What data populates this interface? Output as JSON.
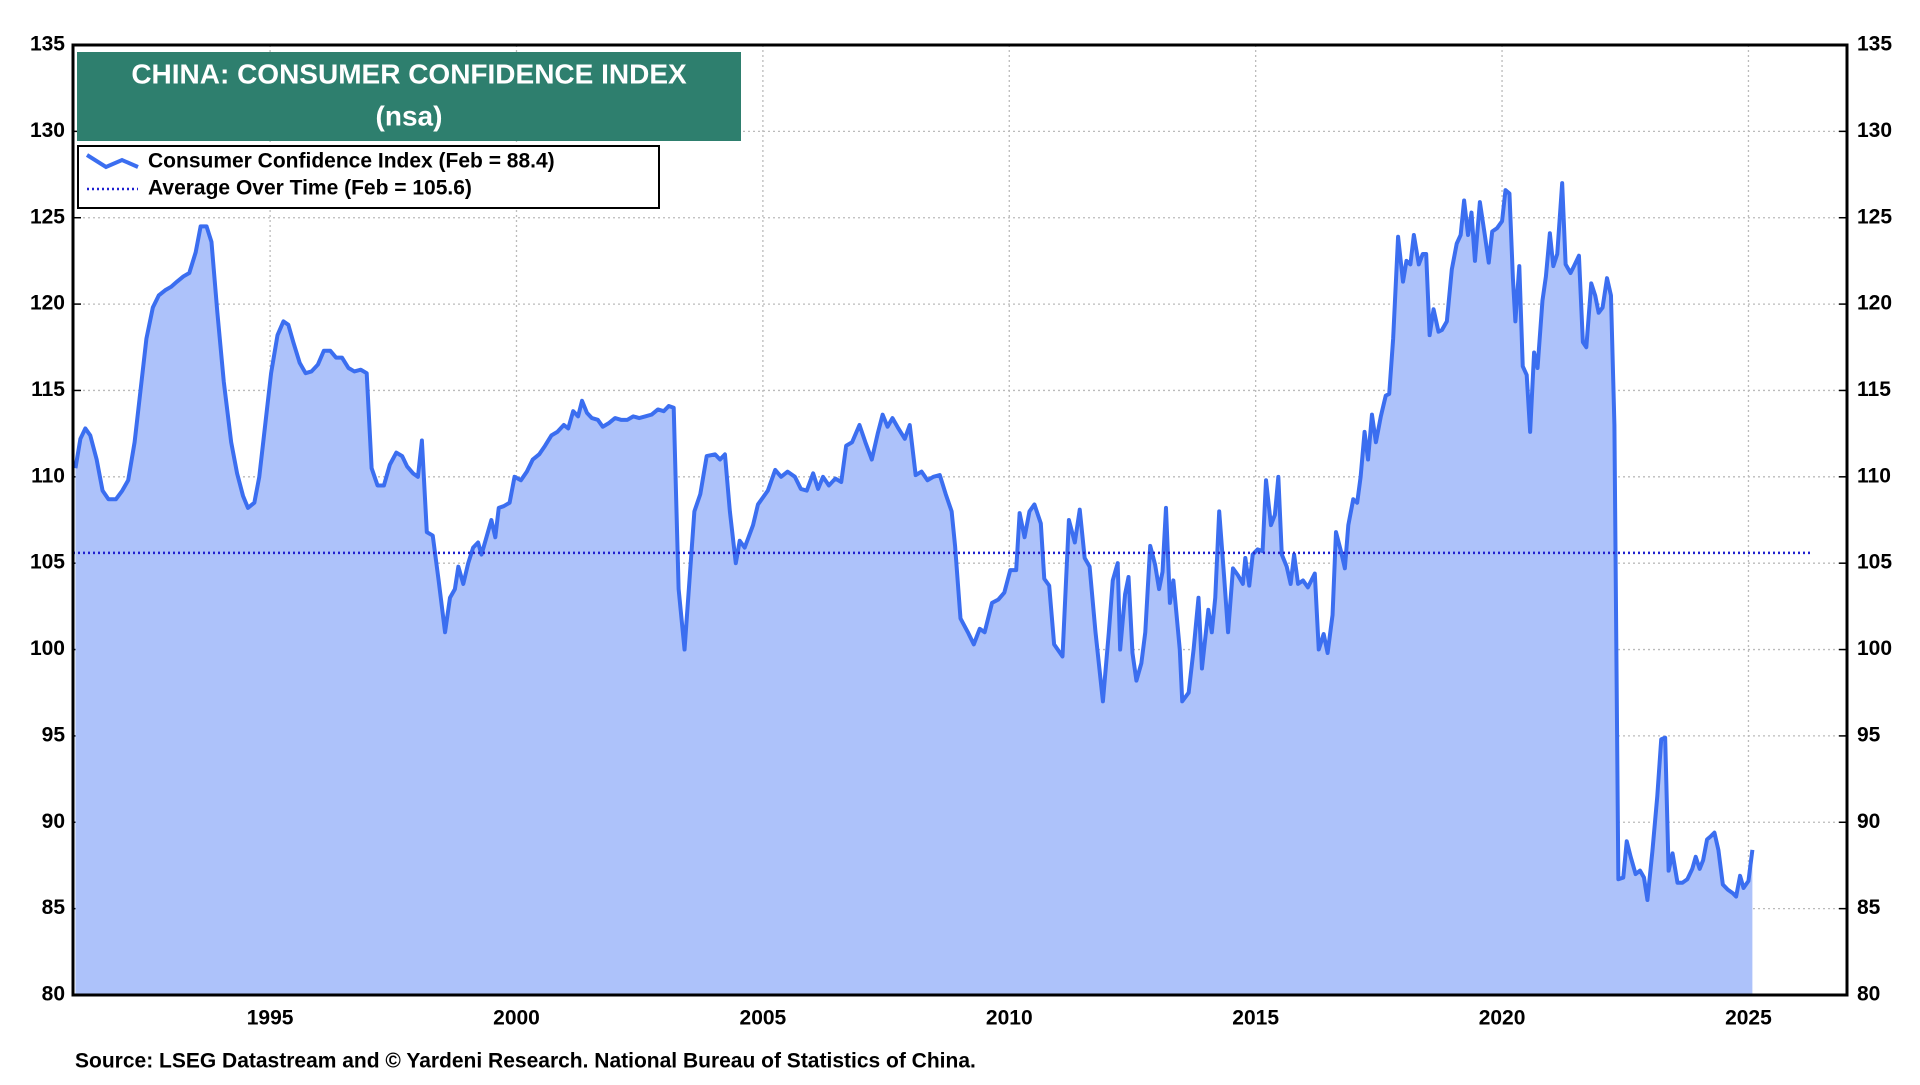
{
  "chart_data": {
    "type": "area-line",
    "title": "CHINA: CONSUMER CONFIDENCE INDEX",
    "subtitle": "(nsa)",
    "source": "Source: LSEG Datastream and © Yardeni Research. National Bureau of Statistics of China.",
    "x": [
      1991.05,
      1991.15,
      1991.25,
      1991.35,
      1991.48,
      1991.6,
      1991.72,
      1991.87,
      1992.0,
      1992.12,
      1992.25,
      1992.37,
      1992.49,
      1992.62,
      1992.74,
      1992.87,
      1992.99,
      1993.11,
      1993.24,
      1993.36,
      1993.49,
      1993.59,
      1993.71,
      1993.81,
      1993.93,
      1994.06,
      1994.21,
      1994.33,
      1994.45,
      1994.55,
      1994.68,
      1994.78,
      1994.9,
      1995.02,
      1995.15,
      1995.27,
      1995.37,
      1995.47,
      1995.6,
      1995.72,
      1995.84,
      1995.97,
      1996.09,
      1996.22,
      1996.34,
      1996.46,
      1996.59,
      1996.71,
      1996.84,
      1996.96,
      1997.06,
      1997.18,
      1997.31,
      1997.43,
      1997.56,
      1997.68,
      1997.78,
      1997.9,
      1998.0,
      1998.08,
      1998.18,
      1998.3,
      1998.42,
      1998.55,
      1998.65,
      1998.75,
      1998.82,
      1998.92,
      1999.02,
      1999.12,
      1999.22,
      1999.29,
      1999.39,
      1999.49,
      1999.57,
      1999.64,
      1999.74,
      1999.86,
      1999.96,
      2000.09,
      2000.21,
      2000.33,
      2000.46,
      2000.58,
      2000.71,
      2000.83,
      2000.96,
      2001.05,
      2001.15,
      2001.25,
      2001.33,
      2001.43,
      2001.53,
      2001.65,
      2001.75,
      2001.87,
      2002.0,
      2002.12,
      2002.25,
      2002.37,
      2002.49,
      2002.62,
      2002.74,
      2002.87,
      2002.99,
      2003.09,
      2003.19,
      2003.29,
      2003.41,
      2003.51,
      2003.61,
      2003.73,
      2003.86,
      2004.03,
      2004.13,
      2004.23,
      2004.33,
      2004.45,
      2004.53,
      2004.63,
      2004.8,
      2004.9,
      2005.1,
      2005.25,
      2005.37,
      2005.5,
      2005.65,
      2005.77,
      2005.89,
      2006.02,
      2006.12,
      2006.22,
      2006.34,
      2006.47,
      2006.59,
      2006.69,
      2006.81,
      2006.96,
      2007.08,
      2007.21,
      2007.33,
      2007.43,
      2007.53,
      2007.63,
      2007.75,
      2007.88,
      2007.98,
      2008.1,
      2008.22,
      2008.34,
      2008.46,
      2008.59,
      2008.71,
      2008.83,
      2008.9,
      2009.01,
      2009.16,
      2009.28,
      2009.4,
      2009.5,
      2009.65,
      2009.78,
      2009.9,
      2010.02,
      2010.14,
      2010.21,
      2010.31,
      2010.41,
      2010.51,
      2010.64,
      2010.71,
      2010.81,
      2010.91,
      2011.08,
      2011.21,
      2011.33,
      2011.43,
      2011.53,
      2011.63,
      2011.75,
      2011.9,
      2012.02,
      2012.1,
      2012.2,
      2012.25,
      2012.35,
      2012.42,
      2012.5,
      2012.58,
      2012.68,
      2012.76,
      2012.86,
      2012.96,
      2013.04,
      2013.11,
      2013.18,
      2013.26,
      2013.33,
      2013.46,
      2013.51,
      2013.64,
      2013.74,
      2013.84,
      2013.91,
      2014.04,
      2014.11,
      2014.18,
      2014.26,
      2014.36,
      2014.44,
      2014.54,
      2014.64,
      2014.74,
      2014.79,
      2014.87,
      2014.94,
      2015.04,
      2015.14,
      2015.21,
      2015.31,
      2015.39,
      2015.46,
      2015.53,
      2015.63,
      2015.71,
      2015.78,
      2015.86,
      2015.96,
      2016.06,
      2016.2,
      2016.28,
      2016.38,
      2016.46,
      2016.56,
      2016.63,
      2016.73,
      2016.81,
      2016.88,
      2016.98,
      2017.06,
      2017.13,
      2017.21,
      2017.28,
      2017.36,
      2017.44,
      2017.54,
      2017.64,
      2017.71,
      2017.79,
      2017.89,
      2017.99,
      2018.06,
      2018.14,
      2018.21,
      2018.31,
      2018.39,
      2018.46,
      2018.53,
      2018.61,
      2018.71,
      2018.78,
      2018.88,
      2018.98,
      2019.08,
      2019.16,
      2019.23,
      2019.31,
      2019.38,
      2019.45,
      2019.55,
      2019.65,
      2019.73,
      2019.8,
      2019.9,
      2020.0,
      2020.07,
      2020.15,
      2020.22,
      2020.27,
      2020.35,
      2020.42,
      2020.5,
      2020.57,
      2020.65,
      2020.72,
      2020.82,
      2020.89,
      2020.97,
      2021.04,
      2021.12,
      2021.22,
      2021.29,
      2021.39,
      2021.46,
      2021.56,
      2021.64,
      2021.71,
      2021.81,
      2021.89,
      2021.96,
      2022.04,
      2022.13,
      2022.21,
      2022.28,
      2022.36,
      2022.46,
      2022.53,
      2022.61,
      2022.71,
      2022.8,
      2022.88,
      2022.95,
      2023.05,
      2023.15,
      2023.23,
      2023.31,
      2023.38,
      2023.46,
      2023.56,
      2023.66,
      2023.76,
      2023.86,
      2023.93,
      2024.01,
      2024.08,
      2024.16,
      2024.24,
      2024.31,
      2024.39,
      2024.48,
      2024.58,
      2024.68,
      2024.75,
      2024.83,
      2024.9,
      2025.0,
      2025.08
    ],
    "series": [
      {
        "name": "Consumer Confidence Index (Feb = 88.4)",
        "color": "#3b6ef0",
        "fill": "#adc2fa",
        "values": [
          110.5,
          112.2,
          112.8,
          112.4,
          111,
          109.2,
          108.7,
          108.7,
          109.2,
          109.8,
          112,
          115,
          118,
          119.8,
          120.5,
          120.8,
          121,
          121.3,
          121.6,
          121.8,
          123,
          124.5,
          124.5,
          123.6,
          119.5,
          115.5,
          112,
          110.2,
          108.9,
          108.2,
          108.5,
          110,
          113,
          116,
          118.2,
          119,
          118.8,
          117.8,
          116.6,
          116,
          116.1,
          116.5,
          117.3,
          117.3,
          116.9,
          116.9,
          116.3,
          116.1,
          116.2,
          116,
          110.5,
          109.5,
          109.5,
          110.7,
          111.4,
          111.2,
          110.6,
          110.2,
          110,
          112.1,
          106.8,
          106.6,
          104,
          101,
          103,
          103.5,
          104.8,
          103.8,
          105,
          105.9,
          106.2,
          105.5,
          106.5,
          107.5,
          106.5,
          108.2,
          108.3,
          108.5,
          110,
          109.8,
          110.3,
          111,
          111.3,
          111.8,
          112.4,
          112.6,
          113,
          112.8,
          113.8,
          113.5,
          114.4,
          113.7,
          113.4,
          113.3,
          112.9,
          113.1,
          113.4,
          113.3,
          113.3,
          113.5,
          113.4,
          113.5,
          113.6,
          113.9,
          113.8,
          114.1,
          114,
          103.5,
          100,
          104,
          108,
          109,
          111.2,
          111.3,
          111,
          111.3,
          108,
          105,
          106.3,
          105.9,
          107.2,
          108.4,
          109.2,
          110.4,
          110,
          110.3,
          110,
          109.3,
          109.2,
          110.2,
          109.3,
          110,
          109.5,
          109.9,
          109.7,
          111.8,
          112,
          113,
          112,
          111,
          112.5,
          113.6,
          112.9,
          113.4,
          112.8,
          112.2,
          113,
          110.1,
          110.3,
          109.8,
          110,
          110.1,
          109,
          108,
          106,
          101.8,
          101,
          100.3,
          101.2,
          101,
          102.7,
          102.9,
          103.3,
          104.6,
          104.6,
          107.9,
          106.5,
          108,
          108.4,
          107.3,
          104.1,
          103.7,
          100.3,
          99.6,
          107.5,
          106.2,
          108.1,
          105.3,
          104.8,
          101,
          97,
          101,
          104,
          105,
          100,
          103.2,
          104.2,
          99.8,
          98.2,
          99.2,
          101,
          106,
          104.9,
          103.5,
          104.5,
          108.2,
          102.7,
          104,
          100,
          97,
          97.5,
          100,
          103,
          98.9,
          102.3,
          101,
          103,
          108,
          104.2,
          101,
          104.7,
          104.3,
          103.8,
          105.3,
          103.7,
          105.5,
          105.8,
          105.7,
          109.8,
          107.2,
          107.8,
          110,
          105.5,
          104.8,
          103.8,
          105.5,
          103.8,
          104,
          103.6,
          104.4,
          100,
          100.9,
          99.8,
          102,
          106.8,
          105.7,
          104.7,
          107.2,
          108.7,
          108.5,
          110,
          112.6,
          111,
          113.6,
          112,
          113.5,
          114.7,
          114.8,
          118,
          123.9,
          121.3,
          122.5,
          122.3,
          124,
          122.3,
          122.9,
          122.9,
          118.2,
          119.7,
          118.4,
          118.5,
          119,
          122,
          123.5,
          124,
          126,
          124,
          125.3,
          122.5,
          125.9,
          124,
          122.4,
          124.2,
          124.4,
          124.8,
          126.6,
          126.4,
          121.5,
          119,
          122.2,
          116.4,
          115.9,
          112.6,
          117.2,
          116.3,
          120.2,
          121.6,
          124.1,
          122.2,
          122.9,
          127,
          122.3,
          121.8,
          122.2,
          122.8,
          117.8,
          117.5,
          121.2,
          120.5,
          119.5,
          119.8,
          121.5,
          120.5,
          113,
          86.7,
          86.8,
          88.9,
          88,
          87,
          87.2,
          86.8,
          85.5,
          88.3,
          91.5,
          94.8,
          94.9,
          87.2,
          88.2,
          86.5,
          86.5,
          86.7,
          87.3,
          88,
          87.3,
          87.8,
          89,
          89.2,
          89.4,
          88.4,
          86.4,
          86.1,
          85.9,
          85.7,
          86.9,
          86.2,
          86.6,
          88.4
        ]
      }
    ],
    "reference_line": {
      "name": "Average Over Time (Feb = 105.6)",
      "value": 105.6,
      "color": "#1f1fcf",
      "style": "dotted",
      "x": [
        1991,
        2026.25
      ]
    },
    "xlim": [
      1991,
      2027
    ],
    "xticks": [
      1995,
      2000,
      2005,
      2010,
      2015,
      2020,
      2025
    ],
    "ylim": [
      80,
      135
    ],
    "yticks": [
      80,
      85,
      90,
      95,
      100,
      105,
      110,
      115,
      120,
      125,
      130,
      135
    ],
    "y2lim": [
      80,
      135
    ],
    "y2ticks": [
      80,
      85,
      90,
      95,
      100,
      105,
      110,
      115,
      120,
      125,
      130,
      135
    ],
    "grid": true,
    "legend": "upper left"
  }
}
